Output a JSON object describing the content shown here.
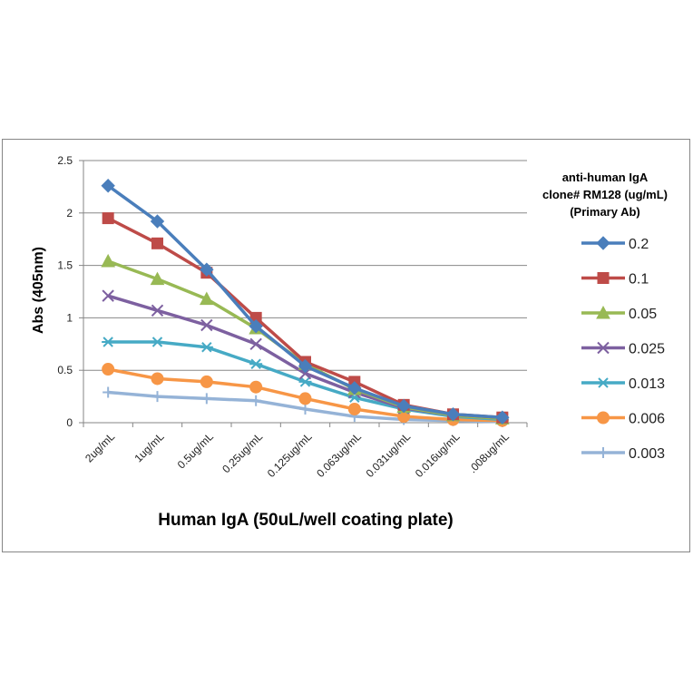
{
  "chart_data": {
    "type": "line",
    "title": "",
    "xlabel": "Human IgA (50uL/well coating plate)",
    "ylabel": "Abs (405nm)",
    "ylim": [
      0,
      2.5
    ],
    "yticks": [
      "0",
      "0.5",
      "1",
      "1.5",
      "2",
      "2.5"
    ],
    "categories": [
      "2ug/mL",
      "1ug/mL",
      "0.5ug/mL",
      "0.25ug/mL",
      "0.125ug/mL",
      "0.063ug/mL",
      "0.031ug/mL",
      "0.016ug/mL",
      ".008ug/mL"
    ],
    "legend_title": [
      "anti-human IgA",
      "clone# RM128 (ug/mL)",
      "(Primary Ab)"
    ],
    "legend_position": "right",
    "grid": "horizontal",
    "series": [
      {
        "name": "0.2",
        "color": "#4A7EBB",
        "marker": "diamond",
        "values": [
          2.26,
          1.92,
          1.46,
          0.92,
          0.54,
          0.33,
          0.16,
          0.08,
          0.05
        ]
      },
      {
        "name": "0.1",
        "color": "#BE4B48",
        "marker": "square",
        "values": [
          1.95,
          1.71,
          1.43,
          1.0,
          0.58,
          0.39,
          0.17,
          0.08,
          0.05
        ]
      },
      {
        "name": "0.05",
        "color": "#98B954",
        "marker": "triangle",
        "values": [
          1.54,
          1.37,
          1.18,
          0.9,
          0.56,
          0.32,
          0.15,
          0.07,
          0.04
        ]
      },
      {
        "name": "0.025",
        "color": "#7D60A0",
        "marker": "x",
        "values": [
          1.21,
          1.07,
          0.93,
          0.75,
          0.47,
          0.29,
          0.14,
          0.07,
          0.04
        ]
      },
      {
        "name": "0.013",
        "color": "#46AAC5",
        "marker": "star",
        "values": [
          0.77,
          0.77,
          0.72,
          0.56,
          0.39,
          0.24,
          0.13,
          0.06,
          0.03
        ]
      },
      {
        "name": "0.006",
        "color": "#F79646",
        "marker": "circle",
        "values": [
          0.51,
          0.42,
          0.39,
          0.34,
          0.23,
          0.13,
          0.06,
          0.03,
          0.02
        ]
      },
      {
        "name": "0.003",
        "color": "#95B3D7",
        "marker": "plus",
        "values": [
          0.29,
          0.25,
          0.23,
          0.21,
          0.13,
          0.06,
          0.03,
          0.02,
          0.01
        ]
      }
    ]
  }
}
